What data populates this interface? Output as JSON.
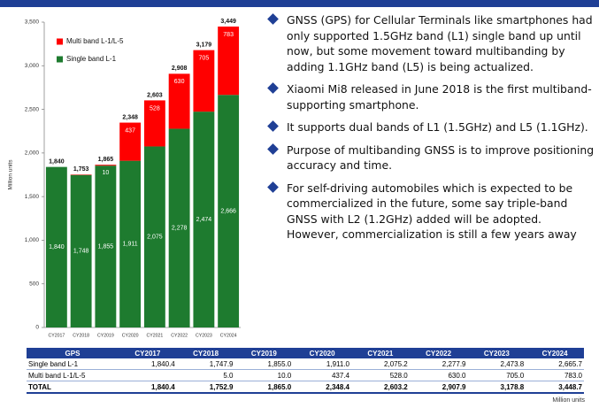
{
  "chart_data": {
    "type": "bar",
    "stacked": true,
    "y_label": "Million units",
    "categories": [
      "CY2017",
      "CY2018",
      "CY2019",
      "CY2020",
      "CY2021",
      "CY2022",
      "CY2023",
      "CY2024"
    ],
    "series": [
      {
        "name": "Single band L-1",
        "color": "#1e7b2f",
        "values": [
          1840,
          1748,
          1855,
          1911,
          2075,
          2278,
          2474,
          2666
        ],
        "value_labels": [
          "1,840",
          "1,748",
          "1,855",
          "1,911",
          "2,075",
          "2,278",
          "2,474",
          "2,666"
        ]
      },
      {
        "name": "Multi band L-1/L-5",
        "color": "#ff0000",
        "values": [
          null,
          5,
          10,
          437,
          528,
          630,
          705,
          783
        ],
        "value_labels": [
          null,
          null,
          "10",
          "437",
          "528",
          "630",
          "705",
          "783"
        ]
      }
    ],
    "totals": [
      1840,
      1753,
      1865,
      2348,
      2603,
      2908,
      3179,
      3449
    ],
    "total_labels": [
      "1,840",
      "1,753",
      "1,865",
      "2,348",
      "2,603",
      "2,908",
      "3,179",
      "3,449"
    ],
    "ylim": [
      0,
      3500
    ],
    "yticks": [
      0,
      500,
      {
        "value": 1000,
        "label": "1,000"
      },
      {
        "value": 1500,
        "label": "1,500"
      },
      {
        "value": 2000,
        "label": "2,000"
      },
      {
        "value": 2500,
        "label": "2,500"
      },
      {
        "value": 3000,
        "label": "3,000"
      },
      {
        "value": 3500,
        "label": "3,500"
      }
    ],
    "legend": "upper-left",
    "grid": false
  },
  "bullets": [
    "GNSS (GPS) for Cellular Terminals like smartphones had only supported 1.5GHz band (L1) single band up until now, but some movement toward multibanding by adding 1.1GHz band (L5) is being actualized.",
    "Xiaomi Mi8 released in June 2018 is the first multiband-supporting smartphone.",
    "It supports dual bands of L1 (1.5GHz) and L5 (1.1GHz).",
    "Purpose of multibanding GNSS is to improve positioning accuracy and time.",
    "For self-driving automobiles which is expected to be commercialized in the future, some say triple-band GNSS with L2 (1.2GHz) added will be adopted. However, commercialization is still a few years away"
  ],
  "table": {
    "header": [
      "GPS",
      "CY2017",
      "CY2018",
      "CY2019",
      "CY2020",
      "CY2021",
      "CY2022",
      "CY2023",
      "CY2024"
    ],
    "rows": [
      [
        "Single band L-1",
        "1,840.4",
        "1,747.9",
        "1,855.0",
        "1,911.0",
        "2,075.2",
        "2,277.9",
        "2,473.8",
        "2,665.7"
      ],
      [
        "Multi band L-1/L-5",
        null,
        "5.0",
        "10.0",
        "437.4",
        "528.0",
        "630.0",
        "705.0",
        "783.0"
      ],
      [
        "TOTAL",
        "1,840.4",
        "1,752.9",
        "1,865.0",
        "2,348.4",
        "2,603.2",
        "2,907.9",
        "3,178.8",
        "3,448.7"
      ]
    ],
    "note": "Million units"
  }
}
